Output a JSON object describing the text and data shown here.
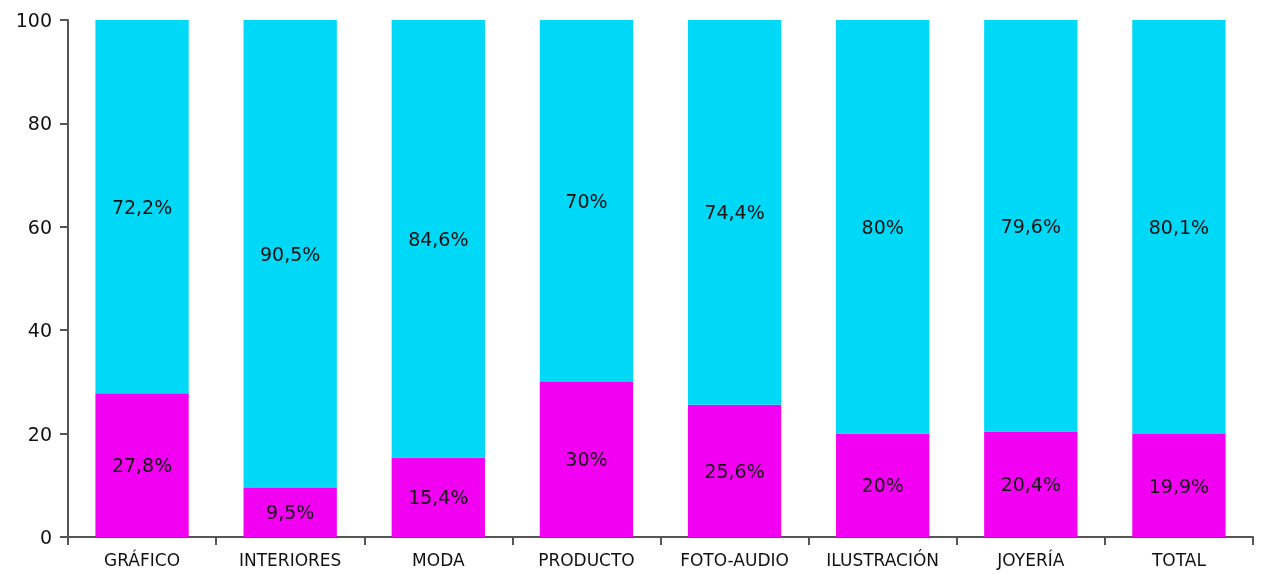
{
  "chart_data": {
    "type": "bar",
    "stacked": true,
    "categories": [
      "GRÁFICO",
      "INTERIORES",
      "MODA",
      "PRODUCTO",
      "FOTO-AUDIO",
      "ILUSTRACIÓN",
      "JOYERÍA",
      "TOTAL"
    ],
    "series": [
      {
        "color": "#f200f2",
        "values": [
          27.8,
          9.5,
          15.4,
          30,
          25.6,
          20,
          20.4,
          19.9
        ],
        "value_labels": [
          "27,8%",
          "9,5%",
          "15,4%",
          "30%",
          "25,6%",
          "20%",
          "20,4%",
          "19,9%"
        ]
      },
      {
        "color": "#00d8f8",
        "values": [
          72.2,
          90.5,
          84.6,
          70,
          74.4,
          80,
          79.6,
          80.1
        ],
        "value_labels": [
          "72,2%",
          "90,5%",
          "84,6%",
          "70%",
          "74,4%",
          "80%",
          "79,6%",
          "80,1%"
        ]
      }
    ],
    "ylim": [
      0,
      100
    ],
    "yticks": [
      0,
      20,
      40,
      60,
      80,
      100
    ],
    "grid": false
  }
}
